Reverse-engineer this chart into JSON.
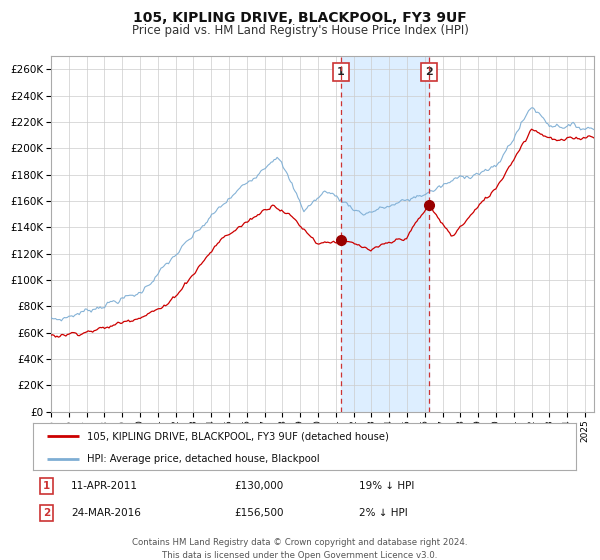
{
  "title": "105, KIPLING DRIVE, BLACKPOOL, FY3 9UF",
  "subtitle": "Price paid vs. HM Land Registry's House Price Index (HPI)",
  "title_fontsize": 10,
  "subtitle_fontsize": 8.5,
  "ylabel_ticks": [
    "£0",
    "£20K",
    "£40K",
    "£60K",
    "£80K",
    "£100K",
    "£120K",
    "£140K",
    "£160K",
    "£180K",
    "£200K",
    "£220K",
    "£240K",
    "£260K"
  ],
  "ytick_values": [
    0,
    20000,
    40000,
    60000,
    80000,
    100000,
    120000,
    140000,
    160000,
    180000,
    200000,
    220000,
    240000,
    260000
  ],
  "ylim": [
    0,
    270000
  ],
  "xlim_start": 1995.0,
  "xlim_end": 2025.5,
  "red_line_color": "#cc0000",
  "blue_line_color": "#7eaed4",
  "marker_color": "#990000",
  "vline_color": "#cc3333",
  "shade_color": "#ddeeff",
  "grid_color": "#cccccc",
  "bg_color": "#ffffff",
  "event1_x": 2011.28,
  "event1_y": 130000,
  "event2_x": 2016.23,
  "event2_y": 156500,
  "legend_line1": "105, KIPLING DRIVE, BLACKPOOL, FY3 9UF (detached house)",
  "legend_line2": "HPI: Average price, detached house, Blackpool",
  "event1_date": "11-APR-2011",
  "event1_price": "£130,000",
  "event1_hpi": "19% ↓ HPI",
  "event2_date": "24-MAR-2016",
  "event2_price": "£156,500",
  "event2_hpi": "2% ↓ HPI",
  "footer": "Contains HM Land Registry data © Crown copyright and database right 2024.\nThis data is licensed under the Open Government Licence v3.0."
}
